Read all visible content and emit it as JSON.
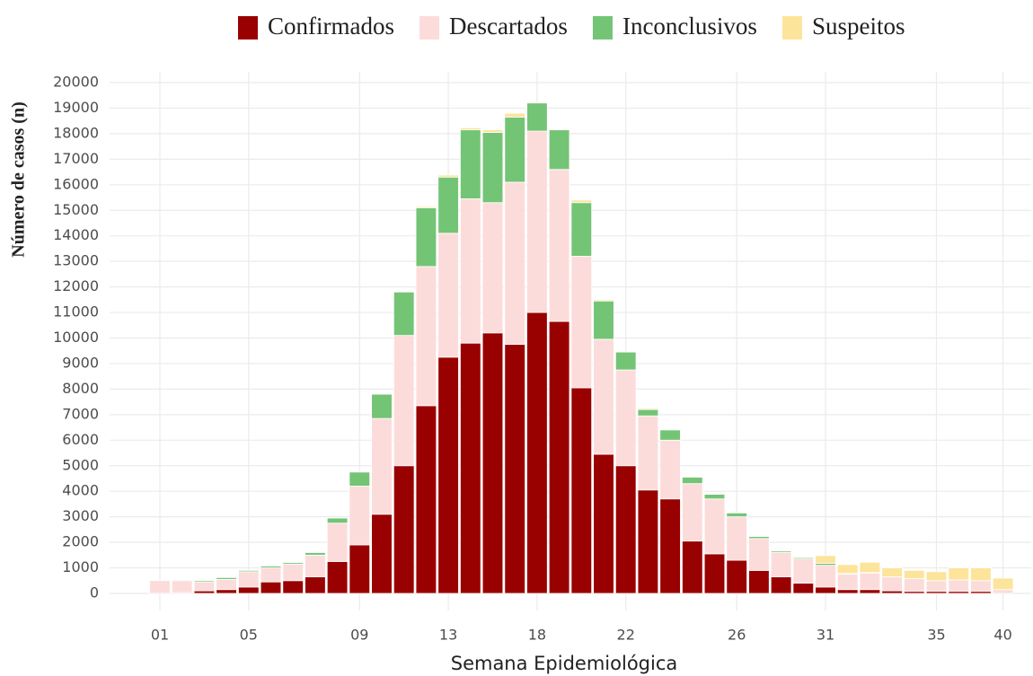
{
  "chart_data": {
    "type": "stacked_bar",
    "x_label": "Semana Epidemiológica",
    "y_label": "Número de casos (n)",
    "categories": [
      "01",
      null,
      null,
      null,
      "05",
      null,
      null,
      null,
      null,
      "09",
      null,
      null,
      null,
      "13",
      null,
      null,
      null,
      "18",
      null,
      null,
      null,
      "22",
      null,
      null,
      null,
      null,
      "26",
      null,
      null,
      null,
      "31",
      null,
      null,
      null,
      null,
      "35",
      null,
      null,
      "40"
    ],
    "series": [
      {
        "name": "Confirmados",
        "color": "#990000",
        "values": [
          0,
          30,
          100,
          150,
          250,
          450,
          500,
          650,
          1250,
          1900,
          3100,
          5000,
          7350,
          9250,
          9800,
          10200,
          9750,
          11000,
          10650,
          8050,
          5450,
          5000,
          4050,
          3700,
          2050,
          1550,
          1300,
          900,
          650,
          400,
          250,
          150,
          150,
          100,
          80,
          80,
          80,
          80,
          0
        ]
      },
      {
        "name": "Descartados",
        "color": "#fcdcda",
        "values": [
          500,
          470,
          350,
          400,
          600,
          550,
          650,
          850,
          1500,
          2300,
          3750,
          5100,
          5450,
          4850,
          5650,
          5100,
          6350,
          7100,
          5950,
          5150,
          4500,
          3750,
          2900,
          2300,
          2250,
          2150,
          1700,
          1250,
          950,
          950,
          850,
          600,
          650,
          550,
          500,
          420,
          450,
          420,
          150
        ]
      },
      {
        "name": "Inconclusivos",
        "color": "#74c476",
        "values": [
          0,
          30,
          50,
          70,
          50,
          70,
          60,
          100,
          200,
          550,
          950,
          1700,
          2300,
          2200,
          2700,
          2750,
          2550,
          1100,
          1550,
          2100,
          1500,
          700,
          250,
          400,
          250,
          180,
          150,
          80,
          60,
          50,
          80,
          30,
          20,
          0,
          0,
          0,
          0,
          0,
          0
        ]
      },
      {
        "name": "Suspeitos",
        "color": "#fde49b",
        "values": [
          0,
          0,
          0,
          0,
          0,
          0,
          0,
          0,
          0,
          0,
          0,
          0,
          50,
          80,
          80,
          100,
          150,
          0,
          0,
          100,
          50,
          0,
          50,
          0,
          0,
          0,
          0,
          30,
          30,
          20,
          300,
          350,
          400,
          350,
          320,
          350,
          470,
          500,
          450
        ]
      }
    ],
    "ylim": [
      0,
      20000
    ],
    "yticks": [
      0,
      1000,
      2000,
      3000,
      4000,
      5000,
      6000,
      7000,
      8000,
      9000,
      10000,
      11000,
      12000,
      13000,
      14000,
      15000,
      16000,
      17000,
      18000,
      19000,
      20000
    ],
    "grid": true
  }
}
